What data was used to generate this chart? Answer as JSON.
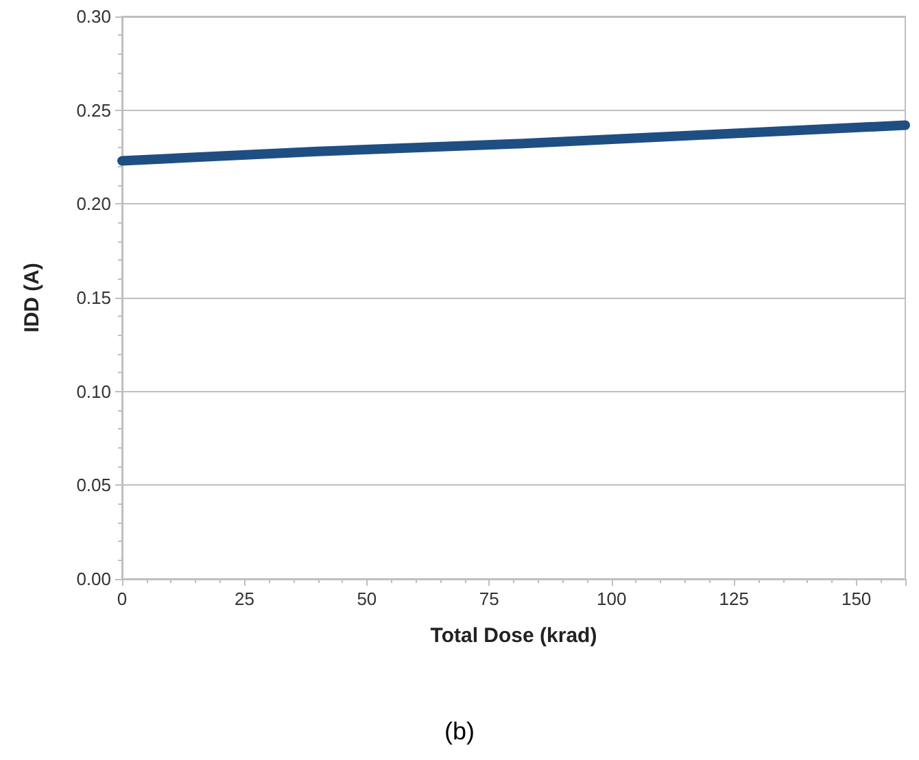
{
  "chart_data": {
    "type": "line",
    "xlabel": "Total Dose (krad)",
    "ylabel": "IDD (A)",
    "annotations": [
      "(b)"
    ],
    "series": [
      {
        "color": "#1f4e82",
        "x": [
          0,
          40,
          80,
          120,
          160
        ],
        "values": [
          0.223,
          0.228,
          0.232,
          0.237,
          0.242
        ]
      }
    ],
    "xlim": [
      0,
      160
    ],
    "xticks": [
      0,
      25,
      50,
      75,
      100,
      125,
      150
    ],
    "ylim": [
      0,
      0.3
    ],
    "yticks": [
      {
        "value": 0,
        "label": "0.00"
      },
      0.05,
      {
        "value": 0.1,
        "label": "0.10"
      },
      0.15,
      {
        "value": 0.2,
        "label": "0.20"
      },
      0.25,
      {
        "value": 0.3,
        "label": "0.30"
      }
    ],
    "grid": "y",
    "line_style": "solid"
  }
}
